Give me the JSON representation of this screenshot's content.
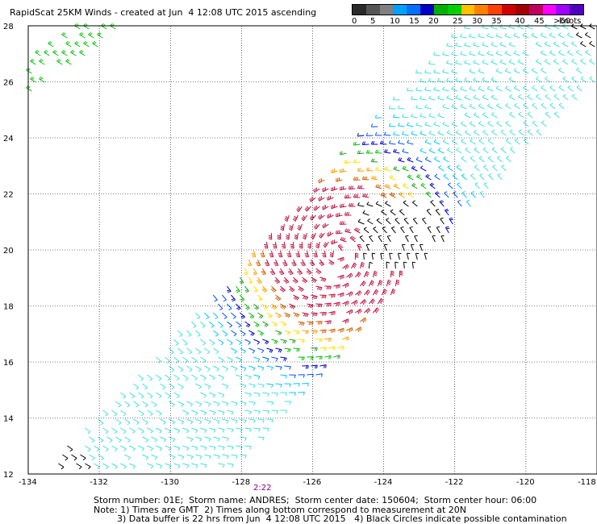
{
  "title": "RapidScat 25KM Winds - created at Jun  4 12:08 UTC 2015 ascending",
  "colorbar": {
    "colors": [
      "#2a2a2a",
      "#555555",
      "#808080",
      "#00a0ff",
      "#0070ff",
      "#0000c8",
      "#00b000",
      "#00d000",
      "#ffc000",
      "#ff8000",
      "#ff4000",
      "#d00000",
      "#a00000",
      "#c00060",
      "#ff00ff",
      "#a000ff",
      "#5000c0"
    ],
    "labels": [
      "0",
      "5",
      "10",
      "15",
      "20",
      "25",
      "30",
      "35",
      "40",
      "45",
      ">50"
    ],
    "units": "knots"
  },
  "map": {
    "lat_ticks": [
      "28",
      "26",
      "24",
      "22",
      "20",
      "18",
      "16",
      "14",
      "12"
    ],
    "lon_ticks": [
      "-134",
      "-132",
      "-130",
      "-128",
      "-126",
      "-124",
      "-122",
      "-120",
      "-118"
    ],
    "extent": {
      "lon_min": -134,
      "lon_max": -118,
      "lat_min": 12,
      "lat_max": 28
    },
    "hour_marker": "2:22",
    "storm_center": {
      "lon": -125.3,
      "lat": 19.9
    }
  },
  "footer": {
    "line1": "Storm number: 01E;  Storm name: ANDRES;  Storm center date: 150604;  Storm center hour: 06:00",
    "line2": "Note: 1) Times are GMT  2) Times along bottom correspond to measurement at 20N",
    "line3": "3) Data buffer is 22 hrs from Jun  4 12:08 UTC 2015   4) Black Circles indicate possible contamination"
  }
}
